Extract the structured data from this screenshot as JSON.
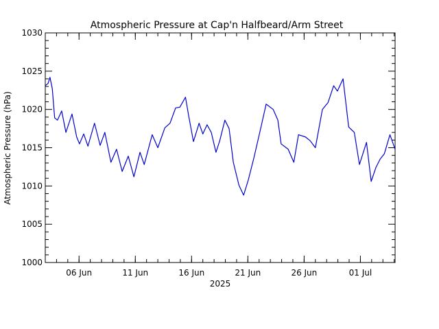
{
  "chart_data": {
    "type": "line",
    "title": "Atmospheric Pressure at Cap'n Halfbeard/Arm Street",
    "ylabel": "Atmospheric Pressure (hPa)",
    "xlabel": "2025",
    "x": [
      "2025-06-03T00:00",
      "2025-06-03T06:00",
      "2025-06-03T10:00",
      "2025-06-03T15:00",
      "2025-06-03T20:00",
      "2025-06-04T02:00",
      "2025-06-04T11:00",
      "2025-06-04T20:00",
      "2025-06-05T09:00",
      "2025-06-05T19:00",
      "2025-06-06T01:00",
      "2025-06-06T10:00",
      "2025-06-06T19:00",
      "2025-06-07T09:00",
      "2025-06-07T21:00",
      "2025-06-08T07:00",
      "2025-06-08T20:00",
      "2025-06-09T08:00",
      "2025-06-09T20:00",
      "2025-06-10T09:00",
      "2025-06-10T21:00",
      "2025-06-11T10:00",
      "2025-06-11T19:00",
      "2025-06-12T12:00",
      "2025-06-13T00:00",
      "2025-06-13T15:00",
      "2025-06-14T02:00",
      "2025-06-14T14:00",
      "2025-06-14T23:00",
      "2025-06-15T11:00",
      "2025-06-15T18:00",
      "2025-06-16T04:00",
      "2025-06-16T16:00",
      "2025-06-17T00:00",
      "2025-06-17T09:00",
      "2025-06-17T18:00",
      "2025-06-18T04:00",
      "2025-06-18T12:00",
      "2025-06-18T23:00",
      "2025-06-19T08:00",
      "2025-06-19T17:00",
      "2025-06-20T05:00",
      "2025-06-20T15:00",
      "2025-06-21T01:00",
      "2025-06-21T13:00",
      "2025-06-22T04:00",
      "2025-06-22T15:00",
      "2025-06-23T06:00",
      "2025-06-23T16:00",
      "2025-06-23T23:00",
      "2025-06-24T14:00",
      "2025-06-25T02:00",
      "2025-06-25T12:00",
      "2025-06-26T03:00",
      "2025-06-26T13:00",
      "2025-06-27T00:00",
      "2025-06-27T15:00",
      "2025-06-28T03:00",
      "2025-06-28T15:00",
      "2025-06-28T23:00",
      "2025-06-29T11:00",
      "2025-06-29T23:00",
      "2025-06-30T11:00",
      "2025-06-30T22:00",
      "2025-07-01T13:00",
      "2025-07-01T23:00",
      "2025-07-02T09:00",
      "2025-07-02T18:00",
      "2025-07-03T03:00",
      "2025-07-03T15:00",
      "2025-07-04T02:00"
    ],
    "series": [
      {
        "name": "Atmospheric Pressure",
        "color": "#0000cc",
        "values": [
          1023.1,
          1023.4,
          1024.2,
          1022.7,
          1018.9,
          1018.6,
          1019.8,
          1017.0,
          1019.4,
          1016.4,
          1015.5,
          1016.8,
          1015.2,
          1018.2,
          1015.3,
          1017.0,
          1013.1,
          1014.8,
          1011.9,
          1013.9,
          1011.2,
          1014.4,
          1012.8,
          1016.7,
          1015.0,
          1017.6,
          1018.2,
          1020.2,
          1020.3,
          1021.6,
          1019.1,
          1015.8,
          1018.2,
          1016.8,
          1018.0,
          1017.0,
          1014.4,
          1015.9,
          1018.6,
          1017.5,
          1013.1,
          1010.1,
          1008.8,
          1010.8,
          1013.7,
          1017.7,
          1020.7,
          1020.0,
          1018.6,
          1015.5,
          1014.8,
          1013.1,
          1016.7,
          1016.4,
          1015.9,
          1015.0,
          1020.0,
          1020.9,
          1023.1,
          1022.4,
          1024.0,
          1017.7,
          1017.0,
          1012.8,
          1015.7,
          1010.6,
          1012.4,
          1013.5,
          1014.2,
          1016.7,
          1014.8
        ]
      }
    ],
    "xlim": [
      "2025-06-03T00:00",
      "2025-07-04T02:00"
    ],
    "xticks": [
      {
        "value": "2025-06-06",
        "label": "06 Jun"
      },
      {
        "value": "2025-06-11",
        "label": "11 Jun"
      },
      {
        "value": "2025-06-16",
        "label": "16 Jun"
      },
      {
        "value": "2025-06-21",
        "label": "21 Jun"
      },
      {
        "value": "2025-06-26",
        "label": "26 Jun"
      },
      {
        "value": "2025-07-01",
        "label": "01 Jul"
      }
    ],
    "ylim": [
      1000,
      1030
    ],
    "yticks": [
      1000,
      1005,
      1010,
      1015,
      1020,
      1025,
      1030
    ]
  }
}
